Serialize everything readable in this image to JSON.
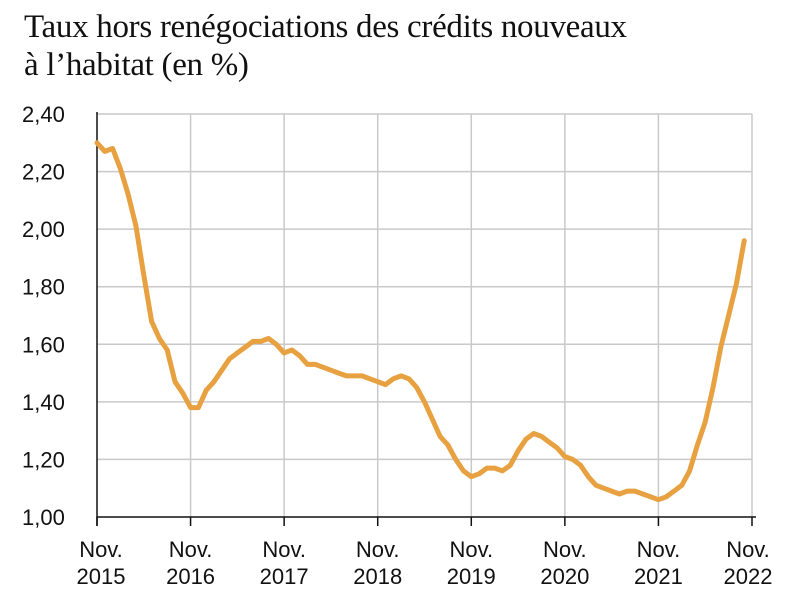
{
  "title_lines": [
    "Taux hors renégociations des crédits nouveaux",
    "à l’habitat (en %)"
  ],
  "chart_data": {
    "type": "line",
    "title": "Taux hors renégociations des crédits nouveaux à l’habitat (en %)",
    "ylim": [
      1.0,
      2.4
    ],
    "y_ticks": [
      1.0,
      1.2,
      1.4,
      1.6,
      1.8,
      2.0,
      2.2,
      2.4
    ],
    "y_tick_labels": [
      "1,00",
      "1,20",
      "1,40",
      "1,60",
      "1,80",
      "2,00",
      "2,20",
      "2,40"
    ],
    "x_ticks": [
      "2015-11",
      "2016-11",
      "2017-11",
      "2018-11",
      "2019-11",
      "2020-11",
      "2021-11",
      "2022-11"
    ],
    "x_tick_labels": [
      [
        "Nov.",
        "2015"
      ],
      [
        "Nov.",
        "2016"
      ],
      [
        "Nov.",
        "2017"
      ],
      [
        "Nov.",
        "2018"
      ],
      [
        "Nov.",
        "2019"
      ],
      [
        "Nov.",
        "2020"
      ],
      [
        "Nov.",
        "2021"
      ],
      [
        "Nov.",
        "2022"
      ]
    ],
    "grid": true,
    "line_color": "#e8a140",
    "series": [
      {
        "points": [
          [
            "2015-11",
            2.3
          ],
          [
            "2015-12",
            2.27
          ],
          [
            "2016-01",
            2.28
          ],
          [
            "2016-02",
            2.21
          ],
          [
            "2016-03",
            2.12
          ],
          [
            "2016-04",
            2.01
          ],
          [
            "2016-05",
            1.84
          ],
          [
            "2016-06",
            1.68
          ],
          [
            "2016-07",
            1.62
          ],
          [
            "2016-08",
            1.58
          ],
          [
            "2016-09",
            1.47
          ],
          [
            "2016-10",
            1.43
          ],
          [
            "2016-11",
            1.38
          ],
          [
            "2016-12",
            1.38
          ],
          [
            "2017-01",
            1.44
          ],
          [
            "2017-02",
            1.47
          ],
          [
            "2017-03",
            1.51
          ],
          [
            "2017-04",
            1.55
          ],
          [
            "2017-05",
            1.57
          ],
          [
            "2017-06",
            1.59
          ],
          [
            "2017-07",
            1.61
          ],
          [
            "2017-08",
            1.61
          ],
          [
            "2017-09",
            1.62
          ],
          [
            "2017-10",
            1.6
          ],
          [
            "2017-11",
            1.57
          ],
          [
            "2017-12",
            1.58
          ],
          [
            "2018-01",
            1.56
          ],
          [
            "2018-02",
            1.53
          ],
          [
            "2018-03",
            1.53
          ],
          [
            "2018-04",
            1.52
          ],
          [
            "2018-05",
            1.51
          ],
          [
            "2018-06",
            1.5
          ],
          [
            "2018-07",
            1.49
          ],
          [
            "2018-08",
            1.49
          ],
          [
            "2018-09",
            1.49
          ],
          [
            "2018-10",
            1.48
          ],
          [
            "2018-11",
            1.47
          ],
          [
            "2018-12",
            1.46
          ],
          [
            "2019-01",
            1.48
          ],
          [
            "2019-02",
            1.49
          ],
          [
            "2019-03",
            1.48
          ],
          [
            "2019-04",
            1.45
          ],
          [
            "2019-05",
            1.4
          ],
          [
            "2019-06",
            1.34
          ],
          [
            "2019-07",
            1.28
          ],
          [
            "2019-08",
            1.25
          ],
          [
            "2019-09",
            1.2
          ],
          [
            "2019-10",
            1.16
          ],
          [
            "2019-11",
            1.14
          ],
          [
            "2019-12",
            1.15
          ],
          [
            "2020-01",
            1.17
          ],
          [
            "2020-02",
            1.17
          ],
          [
            "2020-03",
            1.16
          ],
          [
            "2020-04",
            1.18
          ],
          [
            "2020-05",
            1.23
          ],
          [
            "2020-06",
            1.27
          ],
          [
            "2020-07",
            1.29
          ],
          [
            "2020-08",
            1.28
          ],
          [
            "2020-09",
            1.26
          ],
          [
            "2020-10",
            1.24
          ],
          [
            "2020-11",
            1.21
          ],
          [
            "2020-12",
            1.2
          ],
          [
            "2021-01",
            1.18
          ],
          [
            "2021-02",
            1.14
          ],
          [
            "2021-03",
            1.11
          ],
          [
            "2021-04",
            1.1
          ],
          [
            "2021-05",
            1.09
          ],
          [
            "2021-06",
            1.08
          ],
          [
            "2021-07",
            1.09
          ],
          [
            "2021-08",
            1.09
          ],
          [
            "2021-09",
            1.08
          ],
          [
            "2021-10",
            1.07
          ],
          [
            "2021-11",
            1.06
          ],
          [
            "2021-12",
            1.07
          ],
          [
            "2022-01",
            1.09
          ],
          [
            "2022-02",
            1.11
          ],
          [
            "2022-03",
            1.16
          ],
          [
            "2022-04",
            1.25
          ],
          [
            "2022-05",
            1.33
          ],
          [
            "2022-06",
            1.45
          ],
          [
            "2022-07",
            1.59
          ],
          [
            "2022-08",
            1.7
          ],
          [
            "2022-09",
            1.81
          ],
          [
            "2022-10",
            1.96
          ]
        ]
      }
    ]
  }
}
